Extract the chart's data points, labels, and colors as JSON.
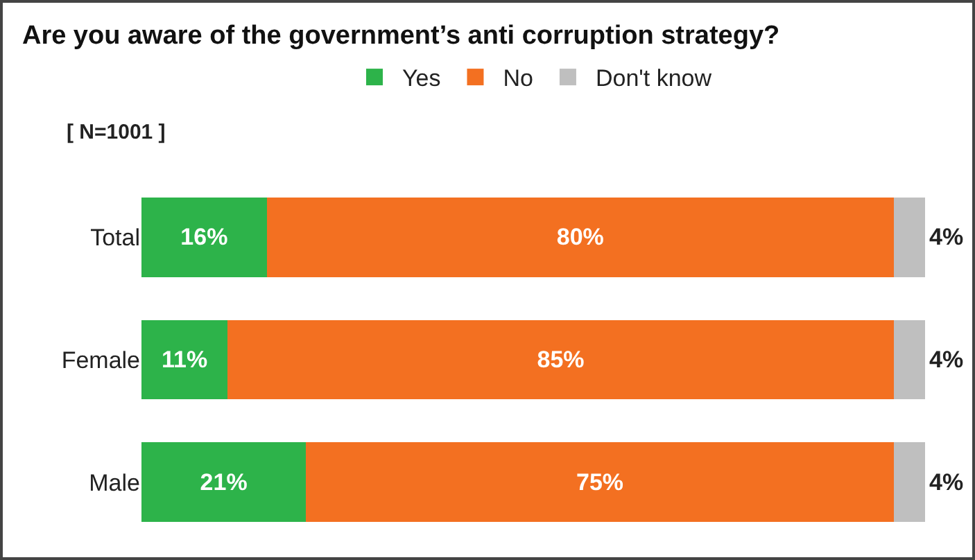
{
  "chart_data": {
    "type": "bar",
    "title": "Are you aware of the government’s anti corruption strategy?",
    "orientation": "horizontal",
    "stacked": true,
    "categories": [
      "Total",
      "Female",
      "Male"
    ],
    "series": [
      {
        "name": "Yes",
        "color": "#2db34a",
        "values": [
          16,
          11,
          21
        ],
        "value_labels": [
          "16%",
          "11%",
          "21%"
        ]
      },
      {
        "name": "No",
        "color": "#f37021",
        "values": [
          80,
          85,
          75
        ],
        "value_labels": [
          "80%",
          "85%",
          "75%"
        ]
      },
      {
        "name": "Don't know",
        "color": "#bfbfbf",
        "values": [
          4,
          4,
          4
        ],
        "value_labels": [
          "4%",
          "4%",
          "4%"
        ]
      }
    ],
    "xlim": [
      0,
      100
    ],
    "tick_labels": "y",
    "grid": false,
    "legend": "top",
    "annotations": [
      "[ N=1001 ]"
    ]
  }
}
